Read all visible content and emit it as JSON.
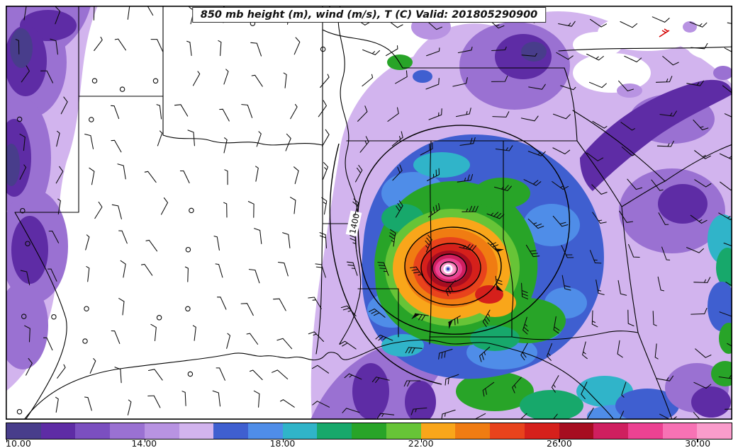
{
  "figure": {
    "title": "850 mb height (m), wind (m/s), T (C) Valid: 201805290900"
  },
  "chart_data": {
    "type": "heatmap",
    "subtype": "filled-contour-weather-map",
    "title": "850 mb height (m), wind (m/s), T (C) Valid: 201805290900",
    "valid": "201805290900",
    "level": "850 mb",
    "variables": [
      {
        "name": "geopotential height",
        "units": "m",
        "style": "black contour lines"
      },
      {
        "name": "wind",
        "units": "m/s",
        "style": "wind barbs"
      },
      {
        "name": "temperature",
        "units": "C",
        "style": "filled color contours"
      }
    ],
    "region": "South-central and southeastern United States with Gulf of Mexico; warm-core cyclone centered over Alabama",
    "overlays": [
      "wind barbs",
      "height contours",
      "state boundaries",
      "coastlines"
    ],
    "height_contour_labels": [
      "1400"
    ],
    "colorbar": {
      "orientation": "horizontal",
      "min": 10,
      "max": 31,
      "interval": 1,
      "tick_values": [
        10,
        14,
        18,
        22,
        26,
        30
      ],
      "tick_labels": [
        "10.00",
        "14.00",
        "18.00",
        "22.00",
        "26.00",
        "30.00"
      ],
      "colors": [
        "#483d8b",
        "#5e2ca5",
        "#7b4fc0",
        "#9a71d2",
        "#b893e2",
        "#d2b4ee",
        "#3f5fd0",
        "#4f8de8",
        "#30b4c9",
        "#17a86b",
        "#28a428",
        "#67c437",
        "#f9a61a",
        "#f07c12",
        "#e8431c",
        "#d5201b",
        "#a60d20",
        "#cf1f5f",
        "#ec4292",
        "#f772b4",
        "#fa9ccb"
      ]
    }
  }
}
